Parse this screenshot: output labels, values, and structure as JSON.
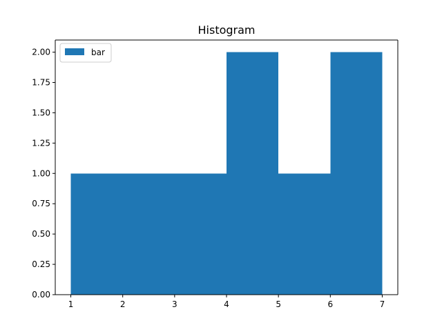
{
  "colors": {
    "bar": "#1f77b4",
    "axis": "#000000",
    "legend_border": "#cccccc",
    "background": "#ffffff"
  },
  "chart_data": {
    "type": "bar",
    "title": "Histogram",
    "xlabel": "",
    "ylabel": "",
    "bins": [
      {
        "x0": 1,
        "x1": 2,
        "value": 1
      },
      {
        "x0": 2,
        "x1": 3,
        "value": 1
      },
      {
        "x0": 3,
        "x1": 4,
        "value": 1
      },
      {
        "x0": 4,
        "x1": 5,
        "value": 2
      },
      {
        "x0": 5,
        "x1": 6,
        "value": 1
      },
      {
        "x0": 6,
        "x1": 7,
        "value": 2
      }
    ],
    "xlim": [
      0.7,
      7.3
    ],
    "ylim": [
      0,
      2.1
    ],
    "xticks": [
      1,
      2,
      3,
      4,
      5,
      6,
      7
    ],
    "xtick_labels": [
      "1",
      "2",
      "3",
      "4",
      "5",
      "6",
      "7"
    ],
    "yticks": [
      0,
      0.25,
      0.5,
      0.75,
      1.0,
      1.25,
      1.5,
      1.75,
      2.0
    ],
    "ytick_labels": [
      "0.00",
      "0.25",
      "0.50",
      "0.75",
      "1.00",
      "1.25",
      "1.50",
      "1.75",
      "2.00"
    ],
    "legend": {
      "placement": "top-left",
      "entries": [
        {
          "label": "bar"
        }
      ]
    },
    "grid": false
  }
}
